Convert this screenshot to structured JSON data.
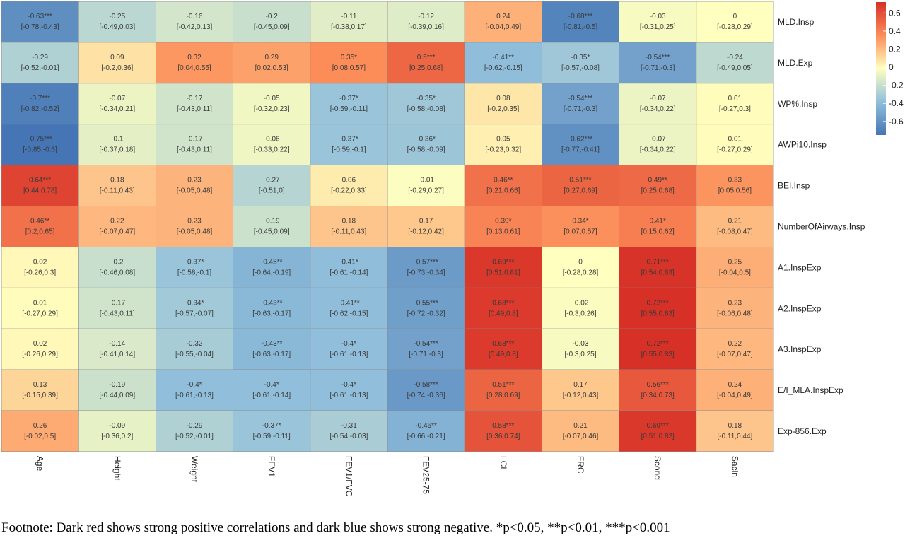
{
  "chart_data": {
    "type": "heatmap",
    "rows": [
      "MLD.Insp",
      "MLD.Exp",
      "WP%.Insp",
      "AWPi10.Insp",
      "BEI.Insp",
      "NumberOfAirways.Insp",
      "A1.InspExp",
      "A2.InspExp",
      "A3.InspExp",
      "E/I_MLA.InspExp",
      "Exp-856.Exp"
    ],
    "columns": [
      "Age",
      "Height",
      "Weight",
      "FEV1",
      "FEV1/FVC",
      "FEV25-75",
      "LCI",
      "FRC",
      "Scond",
      "Sacin"
    ],
    "values": [
      [
        -0.63,
        -0.25,
        -0.16,
        -0.2,
        -0.11,
        -0.12,
        0.24,
        -0.68,
        -0.03,
        0
      ],
      [
        -0.29,
        0.09,
        0.32,
        0.29,
        0.35,
        0.5,
        -0.41,
        -0.35,
        -0.54,
        -0.24
      ],
      [
        -0.7,
        -0.07,
        -0.17,
        -0.05,
        -0.37,
        -0.35,
        0.08,
        -0.54,
        -0.07,
        0.01
      ],
      [
        -0.75,
        -0.1,
        -0.17,
        -0.06,
        -0.37,
        -0.36,
        0.05,
        -0.62,
        -0.07,
        0.01
      ],
      [
        0.64,
        0.18,
        0.23,
        -0.27,
        0.06,
        -0.01,
        0.46,
        0.51,
        0.49,
        0.33
      ],
      [
        0.46,
        0.22,
        0.23,
        -0.19,
        0.18,
        0.17,
        0.39,
        0.34,
        0.41,
        0.21
      ],
      [
        0.02,
        -0.2,
        -0.37,
        -0.45,
        -0.41,
        -0.57,
        0.69,
        0,
        0.71,
        0.25
      ],
      [
        0.01,
        -0.17,
        -0.34,
        -0.43,
        -0.41,
        -0.55,
        0.68,
        -0.02,
        0.72,
        0.23
      ],
      [
        0.02,
        -0.14,
        -0.32,
        -0.43,
        -0.4,
        -0.54,
        0.68,
        -0.03,
        0.72,
        0.22
      ],
      [
        0.13,
        -0.19,
        -0.4,
        -0.4,
        -0.4,
        -0.58,
        0.51,
        0.17,
        0.56,
        0.24
      ],
      [
        0.26,
        -0.09,
        -0.29,
        -0.37,
        -0.31,
        -0.46,
        0.58,
        0.21,
        0.69,
        0.18
      ]
    ],
    "labels": [
      [
        "-0.63***",
        "-0.25",
        "-0.16",
        "-0.2",
        "-0.11",
        "-0.12",
        "0.24",
        "-0.68***",
        "-0.03",
        "0"
      ],
      [
        "-0.29",
        "0.09",
        "0.32",
        "0.29",
        "0.35*",
        "0.5***",
        "-0.41**",
        "-0.35*",
        "-0.54***",
        "-0.24"
      ],
      [
        "-0.7***",
        "-0.07",
        "-0.17",
        "-0.05",
        "-0.37*",
        "-0.35*",
        "0.08",
        "-0.54***",
        "-0.07",
        "0.01"
      ],
      [
        "-0.75***",
        "-0.1",
        "-0.17",
        "-0.06",
        "-0.37*",
        "-0.36*",
        "0.05",
        "-0.62***",
        "-0.07",
        "0.01"
      ],
      [
        "0.64***",
        "0.18",
        "0.23",
        "-0.27",
        "0.06",
        "-0.01",
        "0.46**",
        "0.51***",
        "0.49**",
        "0.33"
      ],
      [
        "0.46**",
        "0.22",
        "0.23",
        "-0.19",
        "0.18",
        "0.17",
        "0.39*",
        "0.34*",
        "0.41*",
        "0.21"
      ],
      [
        "0.02",
        "-0.2",
        "-0.37*",
        "-0.45**",
        "-0.41*",
        "-0.57***",
        "0.69***",
        "0",
        "0.71***",
        "0.25"
      ],
      [
        "0.01",
        "-0.17",
        "-0.34*",
        "-0.43**",
        "-0.41**",
        "-0.55***",
        "0.68***",
        "-0.02",
        "0.72***",
        "0.23"
      ],
      [
        "0.02",
        "-0.14",
        "-0.32",
        "-0.43**",
        "-0.4*",
        "-0.54***",
        "0.68***",
        "-0.03",
        "0.72***",
        "0.22"
      ],
      [
        "0.13",
        "-0.19",
        "-0.4*",
        "-0.4*",
        "-0.4*",
        "-0.58***",
        "0.51***",
        "0.17",
        "0.56***",
        "0.24"
      ],
      [
        "0.26",
        "-0.09",
        "-0.29",
        "-0.37*",
        "-0.31",
        "-0.46**",
        "0.58***",
        "0.21",
        "0.69***",
        "0.18"
      ]
    ],
    "ci": [
      [
        "[-0.78,-0.43]",
        "[-0.49,0.03]",
        "[-0.42,0.13]",
        "[-0.45,0.09]",
        "[-0.38,0.17]",
        "[-0.39,0.16]",
        "[-0.04,0.49]",
        "[-0.81,-0.5]",
        "[-0.31,0.25]",
        "[-0.28,0.29]"
      ],
      [
        "[-0.52,-0.01]",
        "[-0.2,0.36]",
        "[0.04,0.55]",
        "[0.02,0.53]",
        "[0.08,0.57]",
        "[0.25,0.68]",
        "[-0.62,-0.15]",
        "[-0.57,-0.08]",
        "[-0.71,-0.3]",
        "[-0.49,0.05]"
      ],
      [
        "[-0.82,-0.52]",
        "[-0.34,0.21]",
        "[-0.43,0.11]",
        "[-0.32,0.23]",
        "[-0.59,-0.11]",
        "[-0.58,-0.08]",
        "[-0.2,0.35]",
        "[-0.71,-0.3]",
        "[-0.34,0.22]",
        "[-0.27,0.3]"
      ],
      [
        "[-0.85,-0.6]",
        "[-0.37,0.18]",
        "[-0.43,0.11]",
        "[-0.33,0.22]",
        "[-0.59,-0.1]",
        "[-0.58,-0.09]",
        "[-0.23,0.32]",
        "[-0.77,-0.41]",
        "[-0.34,0.22]",
        "[-0.27,0.29]"
      ],
      [
        "[0.44,0.78]",
        "[-0.11,0.43]",
        "[-0.05,0.48]",
        "[-0.51,0]",
        "[-0.22,0.33]",
        "[-0.29,0.27]",
        "[0.21,0.66]",
        "[0.27,0.69]",
        "[0.25,0.68]",
        "[0.05,0.56]"
      ],
      [
        "[0.2,0.65]",
        "[-0.07,0.47]",
        "[-0.05,0.48]",
        "[-0.45,0.09]",
        "[-0.11,0.43]",
        "[-0.12,0.42]",
        "[0.13,0.61]",
        "[0.07,0.57]",
        "[0.15,0.62]",
        "[-0.08,0.47]"
      ],
      [
        "[-0.26,0.3]",
        "[-0.46,0.08]",
        "[-0.58,-0.1]",
        "[-0.64,-0.19]",
        "[-0.61,-0.14]",
        "[-0.73,-0.34]",
        "[0.51,0.81]",
        "[-0.28,0.28]",
        "[0.54,0.83]",
        "[-0.04,0.5]"
      ],
      [
        "[-0.27,0.29]",
        "[-0.43,0.11]",
        "[-0.57,-0.07]",
        "[-0.63,-0.17]",
        "[-0.62,-0.15]",
        "[-0.72,-0.32]",
        "[0.49,0.8]",
        "[-0.3,0.26]",
        "[0.55,0.83]",
        "[-0.06,0.48]"
      ],
      [
        "[-0.26,0.29]",
        "[-0.41,0.14]",
        "[-0.55,-0.04]",
        "[-0.63,-0.17]",
        "[-0.61,-0.13]",
        "[-0.71,-0.3]",
        "[0.49,0.8]",
        "[-0.3,0.25]",
        "[0.55,0.83]",
        "[-0.07,0.47]"
      ],
      [
        "[-0.15,0.39]",
        "[-0.44,0.09]",
        "[-0.61,-0.13]",
        "[-0.61,-0.14]",
        "[-0.61,-0.13]",
        "[-0.74,-0.36]",
        "[0.28,0.69]",
        "[-0.12,0.43]",
        "[0.34,0.73]",
        "[-0.04,0.49]"
      ],
      [
        "[-0.02,0.5]",
        "[-0.36,0.2]",
        "[-0.52,-0.01]",
        "[-0.59,-0.11]",
        "[-0.54,-0.03]",
        "[-0.66,-0.21]",
        "[0.36,0.74]",
        "[-0.07,0.46]",
        "[0.51,0.82]",
        "[-0.11,0.44]"
      ]
    ],
    "color_range": [
      -0.75,
      0.72
    ],
    "colors": {
      "negative": "#4575b4",
      "neutral": "#ffffbf",
      "positive": "#d73027"
    },
    "legend": {
      "placement": "top-right",
      "ticks": [
        "0.6",
        "0.4",
        "0.2",
        "0",
        "-0.2",
        "-0.4",
        "-0.6"
      ],
      "tick_values": [
        0.6,
        0.4,
        0.2,
        0,
        -0.2,
        -0.4,
        -0.6
      ]
    }
  },
  "footnote": "Footnote: Dark red shows strong positive correlations and dark blue shows strong negative. *p<0.05, **p<0.01, ***p<0.001"
}
